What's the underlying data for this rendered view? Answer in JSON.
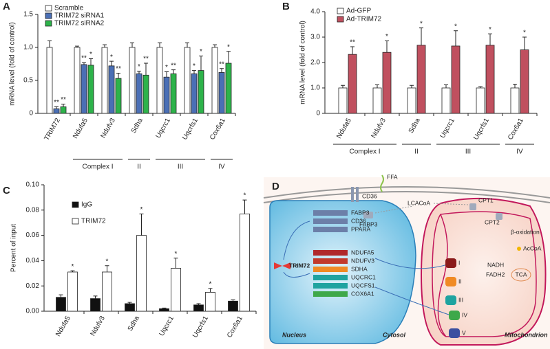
{
  "chart_data": [
    {
      "type": "bar",
      "panel": "A",
      "ylabel": "mRNA level (fold of control)",
      "categories": [
        "TRIM72",
        "Ndufa5",
        "Ndufv3",
        "Sdha",
        "Uqcrc1",
        "Uqcrfs1",
        "Cox6a1"
      ],
      "ylim": [
        0,
        1.5
      ],
      "yticks": [
        0,
        0.5,
        {
          "value": 1,
          "label": "1.0"
        },
        {
          "value": 1.5,
          "label": "1.5"
        }
      ],
      "series": [
        {
          "name": "Scramble",
          "color": "#ffffff",
          "values": [
            1,
            1,
            1,
            1,
            1,
            1,
            1
          ],
          "errors": [
            0.1,
            0.02,
            0.04,
            0.07,
            0.07,
            0.07,
            0.04
          ]
        },
        {
          "name": "TRIM72 siRNA1",
          "color": "#4a6fb5",
          "values": [
            0.07,
            0.74,
            0.72,
            0.6,
            0.55,
            0.6,
            0.62
          ],
          "errors": [
            0.03,
            0.03,
            0.07,
            0.04,
            0.08,
            0.05,
            0.06
          ],
          "stars": [
            "**",
            "**",
            "*",
            "*",
            "*",
            "*",
            "**"
          ]
        },
        {
          "name": "TRIM72 siRNA2",
          "color": "#2db34a",
          "values": [
            0.1,
            0.73,
            0.53,
            0.58,
            0.6,
            0.65,
            0.76
          ],
          "errors": [
            0.04,
            0.1,
            0.08,
            0.18,
            0.06,
            0.22,
            0.18
          ],
          "stars": [
            "**",
            "*",
            "**",
            "**",
            "**",
            "*",
            "*"
          ]
        }
      ],
      "groups": [
        {
          "label": "Complex I"
        },
        {
          "label": "II"
        },
        {
          "label": "III"
        },
        {
          "label": "IV"
        }
      ]
    },
    {
      "type": "bar",
      "panel": "B",
      "ylabel": "mRNA level (fold of control)",
      "categories": [
        "Ndufa5",
        "Ndufv3",
        "Sdha",
        "Uqcrc1",
        "Uqcrfs1",
        "Cox6a1"
      ],
      "ylim": [
        0,
        4
      ],
      "yticks": [
        0,
        {
          "value": 1,
          "label": "1.0"
        },
        {
          "value": 2,
          "label": "2.0"
        },
        {
          "value": 3,
          "label": "3.0"
        },
        {
          "value": 4,
          "label": "4.0"
        }
      ],
      "series": [
        {
          "name": "Ad-GFP",
          "color": "#ffffff",
          "values": [
            1,
            1,
            1,
            1,
            1,
            1
          ],
          "errors": [
            0.1,
            0.12,
            0.1,
            0.12,
            0.05,
            0.15
          ]
        },
        {
          "name": "Ad-TRIM72",
          "color": "#c0505f",
          "values": [
            2.32,
            2.4,
            2.68,
            2.65,
            2.68,
            2.5
          ],
          "errors": [
            0.3,
            0.45,
            0.68,
            0.6,
            0.45,
            0.5
          ],
          "stars": [
            "**",
            "*",
            "*",
            "*",
            "*",
            "*"
          ]
        }
      ],
      "groups": [
        {
          "label": "Complex I"
        },
        {
          "label": "II"
        },
        {
          "label": "III"
        },
        {
          "label": "IV"
        }
      ]
    },
    {
      "type": "bar",
      "panel": "C",
      "ylabel": "Percent of input",
      "categories": [
        "Ndufa5",
        "Ndufv3",
        "Sdha",
        "Uqcrc1",
        "Uqcrfs1",
        "Cox6a1"
      ],
      "ylim": [
        0,
        0.1
      ],
      "yticks": [
        {
          "value": 0,
          "label": "0.00"
        },
        0.02,
        0.04,
        0.06,
        0.08,
        {
          "value": 0.1,
          "label": "0.10"
        }
      ],
      "series": [
        {
          "name": "IgG",
          "color": "#111111",
          "values": [
            0.011,
            0.01,
            0.006,
            0.002,
            0.005,
            0.008
          ],
          "errors": [
            0.002,
            0.002,
            0.001,
            0.0005,
            0.001,
            0.001
          ]
        },
        {
          "name": "TRIM72",
          "color": "#ffffff",
          "values": [
            0.031,
            0.031,
            0.06,
            0.034,
            0.015,
            0.077
          ],
          "errors": [
            0.001,
            0.005,
            0.017,
            0.008,
            0.003,
            0.011
          ],
          "stars": [
            "*",
            "*",
            "*",
            "*",
            "*",
            "*"
          ]
        }
      ]
    }
  ],
  "diagram": {
    "panel": "D",
    "texts": {
      "ffa": "FFA",
      "cd36": "CD36",
      "fabp3": "FABP3",
      "lcacoa": "LCACoA",
      "cpt1": "CPT1",
      "cpt2": "CPT2",
      "beta": "β-oxidation",
      "accoa": "AcCoA",
      "nadh": "NADH",
      "fadh2": "FADH2",
      "tca": "TCA",
      "trim72": "TRIM72",
      "nucleus": "Nucleus",
      "cytosol": "Cytosol",
      "mito": "Mitochondrion"
    },
    "fa_genes": [
      "FABP3",
      "CD36",
      "PPARA"
    ],
    "etc_genes": [
      "NDUFA5",
      "NDUFV3",
      "SDHA",
      "UQCRC1",
      "UQCFS1",
      "COX6A1"
    ],
    "complexes": [
      "I",
      "II",
      "III",
      "IV",
      "V"
    ]
  }
}
